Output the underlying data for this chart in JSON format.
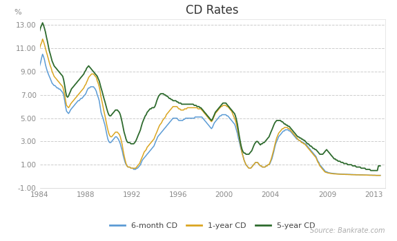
{
  "title": "CD Rates",
  "ylabel": "%",
  "source": "Source: Bankrate.com",
  "xlim": [
    1984,
    2014
  ],
  "ylim": [
    -1.0,
    13.5
  ],
  "yticks": [
    -1.0,
    1.0,
    3.0,
    5.0,
    7.0,
    9.0,
    11.0,
    13.0
  ],
  "ytick_labels": [
    "-1.00",
    "1.00",
    "3.00",
    "5.00",
    "7.00",
    "9.00",
    "11.00",
    "13.00"
  ],
  "xticks": [
    1984,
    1988,
    1992,
    1996,
    2000,
    2004,
    2009,
    2013
  ],
  "color_6m": "#5b9bd5",
  "color_1y": "#daa520",
  "color_5y": "#2d6a2d",
  "bg_color": "#ffffff",
  "grid_color": "#cccccc",
  "tick_color": "#888888",
  "title_color": "#333333",
  "legend_labels": [
    "6-month CD",
    "1-year CD",
    "5-year CD"
  ],
  "data": {
    "years": [
      1984.0,
      1984.08,
      1984.17,
      1984.25,
      1984.33,
      1984.42,
      1984.5,
      1984.58,
      1984.67,
      1984.75,
      1984.83,
      1984.92,
      1985.0,
      1985.08,
      1985.17,
      1985.25,
      1985.33,
      1985.42,
      1985.5,
      1985.58,
      1985.67,
      1985.75,
      1985.83,
      1985.92,
      1986.0,
      1986.08,
      1986.17,
      1986.25,
      1986.33,
      1986.42,
      1986.5,
      1986.58,
      1986.67,
      1986.75,
      1986.83,
      1986.92,
      1987.0,
      1987.08,
      1987.17,
      1987.25,
      1987.33,
      1987.42,
      1987.5,
      1987.58,
      1987.67,
      1987.75,
      1987.83,
      1987.92,
      1988.0,
      1988.08,
      1988.17,
      1988.25,
      1988.33,
      1988.42,
      1988.5,
      1988.58,
      1988.67,
      1988.75,
      1988.83,
      1988.92,
      1989.0,
      1989.08,
      1989.17,
      1989.25,
      1989.33,
      1989.42,
      1989.5,
      1989.58,
      1989.67,
      1989.75,
      1989.83,
      1989.92,
      1990.0,
      1990.08,
      1990.17,
      1990.25,
      1990.33,
      1990.42,
      1990.5,
      1990.58,
      1990.67,
      1990.75,
      1990.83,
      1990.92,
      1991.0,
      1991.08,
      1991.17,
      1991.25,
      1991.33,
      1991.42,
      1991.5,
      1991.58,
      1991.67,
      1991.75,
      1991.83,
      1991.92,
      1992.0,
      1992.08,
      1992.17,
      1992.25,
      1992.33,
      1992.42,
      1992.5,
      1992.58,
      1992.67,
      1992.75,
      1992.83,
      1992.92,
      1993.0,
      1993.08,
      1993.17,
      1993.25,
      1993.33,
      1993.42,
      1993.5,
      1993.58,
      1993.67,
      1993.75,
      1993.83,
      1993.92,
      1994.0,
      1994.08,
      1994.17,
      1994.25,
      1994.33,
      1994.42,
      1994.5,
      1994.58,
      1994.67,
      1994.75,
      1994.83,
      1994.92,
      1995.0,
      1995.08,
      1995.17,
      1995.25,
      1995.33,
      1995.42,
      1995.5,
      1995.58,
      1995.67,
      1995.75,
      1995.83,
      1995.92,
      1996.0,
      1996.08,
      1996.17,
      1996.25,
      1996.33,
      1996.42,
      1996.5,
      1996.58,
      1996.67,
      1996.75,
      1996.83,
      1996.92,
      1997.0,
      1997.08,
      1997.17,
      1997.25,
      1997.33,
      1997.42,
      1997.5,
      1997.58,
      1997.67,
      1997.75,
      1997.83,
      1997.92,
      1998.0,
      1998.08,
      1998.17,
      1998.25,
      1998.33,
      1998.42,
      1998.5,
      1998.58,
      1998.67,
      1998.75,
      1998.83,
      1998.92,
      1999.0,
      1999.08,
      1999.17,
      1999.25,
      1999.33,
      1999.42,
      1999.5,
      1999.58,
      1999.67,
      1999.75,
      1999.83,
      1999.92,
      2000.0,
      2000.08,
      2000.17,
      2000.25,
      2000.33,
      2000.42,
      2000.5,
      2000.58,
      2000.67,
      2000.75,
      2000.83,
      2000.92,
      2001.0,
      2001.08,
      2001.17,
      2001.25,
      2001.33,
      2001.42,
      2001.5,
      2001.58,
      2001.67,
      2001.75,
      2001.83,
      2001.92,
      2002.0,
      2002.08,
      2002.17,
      2002.25,
      2002.33,
      2002.42,
      2002.5,
      2002.58,
      2002.67,
      2002.75,
      2002.83,
      2002.92,
      2003.0,
      2003.08,
      2003.17,
      2003.25,
      2003.33,
      2003.42,
      2003.5,
      2003.58,
      2003.67,
      2003.75,
      2003.83,
      2003.92,
      2004.0,
      2004.08,
      2004.17,
      2004.25,
      2004.33,
      2004.42,
      2004.5,
      2004.58,
      2004.67,
      2004.75,
      2004.83,
      2004.92,
      2005.0,
      2005.08,
      2005.17,
      2005.25,
      2005.33,
      2005.42,
      2005.5,
      2005.58,
      2005.67,
      2005.75,
      2005.83,
      2005.92,
      2006.0,
      2006.08,
      2006.17,
      2006.25,
      2006.33,
      2006.42,
      2006.5,
      2006.58,
      2006.67,
      2006.75,
      2006.83,
      2006.92,
      2007.0,
      2007.08,
      2007.17,
      2007.25,
      2007.33,
      2007.42,
      2007.5,
      2007.58,
      2007.67,
      2007.75,
      2007.83,
      2007.92,
      2008.0,
      2008.08,
      2008.17,
      2008.25,
      2008.33,
      2008.42,
      2008.5,
      2008.58,
      2008.67,
      2008.75,
      2008.83,
      2008.92,
      2009.0,
      2009.08,
      2009.17,
      2009.25,
      2009.33,
      2009.42,
      2009.5,
      2009.58,
      2009.67,
      2009.75,
      2009.83,
      2009.92,
      2010.0,
      2010.08,
      2010.17,
      2010.25,
      2010.33,
      2010.42,
      2010.5,
      2010.58,
      2010.67,
      2010.75,
      2010.83,
      2010.92,
      2011.0,
      2011.08,
      2011.17,
      2011.25,
      2011.33,
      2011.42,
      2011.5,
      2011.58,
      2011.67,
      2011.75,
      2011.83,
      2011.92,
      2012.0,
      2012.08,
      2012.17,
      2012.25,
      2012.33,
      2012.42,
      2012.5,
      2012.58,
      2012.67,
      2012.75,
      2012.83,
      2012.92,
      2013.0,
      2013.08,
      2013.17,
      2013.25,
      2013.33,
      2013.42,
      2013.5,
      2013.58
    ],
    "rate_6m": [
      9.5,
      9.8,
      10.2,
      10.5,
      10.3,
      10.0,
      9.6,
      9.3,
      9.0,
      8.8,
      8.6,
      8.4,
      8.2,
      8.0,
      7.9,
      7.8,
      7.8,
      7.7,
      7.6,
      7.6,
      7.5,
      7.5,
      7.4,
      7.3,
      7.2,
      7.0,
      6.5,
      6.0,
      5.6,
      5.5,
      5.4,
      5.5,
      5.7,
      5.8,
      5.9,
      6.0,
      6.1,
      6.2,
      6.3,
      6.4,
      6.5,
      6.5,
      6.6,
      6.7,
      6.7,
      6.8,
      6.9,
      7.0,
      7.1,
      7.3,
      7.5,
      7.6,
      7.6,
      7.7,
      7.7,
      7.7,
      7.7,
      7.6,
      7.5,
      7.3,
      7.0,
      6.8,
      6.5,
      6.0,
      5.5,
      5.2,
      5.0,
      4.7,
      4.4,
      4.0,
      3.6,
      3.2,
      3.0,
      2.9,
      2.9,
      3.0,
      3.1,
      3.2,
      3.3,
      3.4,
      3.4,
      3.3,
      3.2,
      3.0,
      2.8,
      2.5,
      2.2,
      1.8,
      1.5,
      1.2,
      1.0,
      0.9,
      0.8,
      0.8,
      0.8,
      0.7,
      0.7,
      0.7,
      0.6,
      0.6,
      0.6,
      0.7,
      0.7,
      0.8,
      0.9,
      1.0,
      1.2,
      1.4,
      1.5,
      1.6,
      1.7,
      1.8,
      1.9,
      2.0,
      2.1,
      2.2,
      2.3,
      2.4,
      2.5,
      2.6,
      2.8,
      3.0,
      3.2,
      3.4,
      3.5,
      3.6,
      3.7,
      3.8,
      3.9,
      4.0,
      4.1,
      4.2,
      4.3,
      4.4,
      4.5,
      4.6,
      4.7,
      4.8,
      4.9,
      5.0,
      5.0,
      5.0,
      5.0,
      5.0,
      4.9,
      4.8,
      4.8,
      4.8,
      4.8,
      4.8,
      4.9,
      4.9,
      5.0,
      5.0,
      5.0,
      5.0,
      5.0,
      5.0,
      5.0,
      5.0,
      5.0,
      5.0,
      5.1,
      5.1,
      5.1,
      5.1,
      5.1,
      5.1,
      5.1,
      5.1,
      5.0,
      4.9,
      4.8,
      4.7,
      4.6,
      4.5,
      4.4,
      4.3,
      4.2,
      4.1,
      4.2,
      4.4,
      4.6,
      4.7,
      4.8,
      4.9,
      5.0,
      5.1,
      5.2,
      5.2,
      5.3,
      5.3,
      5.3,
      5.3,
      5.3,
      5.2,
      5.2,
      5.1,
      5.0,
      4.9,
      4.8,
      4.7,
      4.6,
      4.5,
      4.3,
      4.0,
      3.7,
      3.3,
      3.0,
      2.6,
      2.3,
      2.0,
      1.7,
      1.4,
      1.2,
      1.0,
      0.9,
      0.8,
      0.7,
      0.7,
      0.7,
      0.8,
      0.9,
      1.0,
      1.1,
      1.2,
      1.2,
      1.2,
      1.1,
      1.0,
      0.9,
      0.9,
      0.8,
      0.8,
      0.8,
      0.8,
      0.9,
      0.9,
      1.0,
      1.0,
      1.1,
      1.3,
      1.5,
      1.8,
      2.1,
      2.5,
      2.8,
      3.0,
      3.2,
      3.4,
      3.5,
      3.6,
      3.7,
      3.8,
      3.9,
      3.9,
      4.0,
      4.0,
      4.0,
      4.0,
      3.9,
      3.9,
      3.8,
      3.7,
      3.6,
      3.5,
      3.4,
      3.3,
      3.2,
      3.2,
      3.1,
      3.1,
      3.0,
      3.0,
      2.9,
      2.9,
      2.8,
      2.8,
      2.7,
      2.6,
      2.5,
      2.4,
      2.3,
      2.2,
      2.1,
      2.0,
      1.9,
      1.8,
      1.7,
      1.5,
      1.3,
      1.2,
      1.0,
      0.9,
      0.8,
      0.7,
      0.6,
      0.5,
      0.4,
      0.4,
      0.35,
      0.32,
      0.3,
      0.28,
      0.27,
      0.26,
      0.25,
      0.24,
      0.23,
      0.22,
      0.22,
      0.21,
      0.21,
      0.2,
      0.2,
      0.19,
      0.19,
      0.19,
      0.18,
      0.18,
      0.18,
      0.17,
      0.17,
      0.17,
      0.16,
      0.16,
      0.16,
      0.15,
      0.15,
      0.15,
      0.14,
      0.14,
      0.14,
      0.13,
      0.13,
      0.13,
      0.13,
      0.12,
      0.12,
      0.12,
      0.11,
      0.11,
      0.11,
      0.11,
      0.1,
      0.1,
      0.1,
      0.1,
      0.1,
      0.1,
      0.09,
      0.09,
      0.09,
      0.09,
      0.09,
      0.09
    ],
    "rate_1y": [
      11.0,
      11.3,
      11.5,
      11.8,
      11.6,
      11.3,
      11.0,
      10.7,
      10.4,
      10.1,
      9.8,
      9.5,
      9.3,
      9.0,
      8.8,
      8.6,
      8.5,
      8.4,
      8.3,
      8.2,
      8.1,
      8.0,
      7.9,
      7.8,
      7.7,
      7.4,
      7.0,
      6.5,
      6.1,
      6.0,
      5.9,
      6.0,
      6.2,
      6.3,
      6.4,
      6.5,
      6.6,
      6.7,
      6.8,
      6.9,
      7.0,
      7.1,
      7.2,
      7.3,
      7.4,
      7.5,
      7.6,
      7.8,
      7.9,
      8.1,
      8.3,
      8.5,
      8.6,
      8.7,
      8.8,
      8.8,
      8.8,
      8.7,
      8.6,
      8.5,
      8.2,
      8.0,
      7.7,
      7.3,
      6.8,
      6.4,
      6.0,
      5.6,
      5.2,
      4.8,
      4.4,
      4.0,
      3.7,
      3.5,
      3.4,
      3.4,
      3.5,
      3.6,
      3.7,
      3.8,
      3.8,
      3.8,
      3.7,
      3.6,
      3.4,
      3.1,
      2.7,
      2.2,
      1.8,
      1.4,
      1.1,
      0.9,
      0.8,
      0.8,
      0.8,
      0.7,
      0.7,
      0.7,
      0.7,
      0.7,
      0.7,
      0.8,
      0.9,
      1.0,
      1.1,
      1.3,
      1.5,
      1.7,
      1.9,
      2.1,
      2.2,
      2.3,
      2.5,
      2.6,
      2.7,
      2.8,
      2.9,
      3.0,
      3.1,
      3.2,
      3.4,
      3.6,
      3.8,
      4.0,
      4.2,
      4.4,
      4.5,
      4.6,
      4.8,
      4.9,
      5.0,
      5.1,
      5.3,
      5.4,
      5.5,
      5.6,
      5.7,
      5.8,
      5.9,
      6.0,
      6.0,
      6.0,
      6.0,
      6.0,
      5.9,
      5.8,
      5.8,
      5.7,
      5.7,
      5.7,
      5.7,
      5.8,
      5.8,
      5.8,
      5.9,
      5.9,
      5.9,
      5.9,
      5.9,
      5.9,
      5.9,
      5.9,
      5.9,
      5.9,
      5.9,
      5.8,
      5.8,
      5.8,
      5.8,
      5.7,
      5.6,
      5.5,
      5.4,
      5.3,
      5.2,
      5.1,
      5.0,
      4.9,
      4.8,
      4.7,
      4.8,
      5.0,
      5.2,
      5.4,
      5.5,
      5.6,
      5.7,
      5.8,
      5.9,
      6.0,
      6.0,
      6.1,
      6.1,
      6.1,
      6.1,
      6.0,
      6.0,
      5.9,
      5.8,
      5.7,
      5.6,
      5.4,
      5.2,
      5.0,
      4.8,
      4.5,
      4.1,
      3.7,
      3.3,
      2.8,
      2.4,
      2.0,
      1.7,
      1.4,
      1.2,
      1.0,
      0.9,
      0.8,
      0.7,
      0.7,
      0.7,
      0.8,
      0.9,
      1.0,
      1.1,
      1.2,
      1.2,
      1.2,
      1.1,
      1.0,
      0.9,
      0.9,
      0.8,
      0.8,
      0.8,
      0.8,
      0.9,
      0.9,
      1.0,
      1.0,
      1.2,
      1.4,
      1.7,
      2.0,
      2.3,
      2.7,
      3.0,
      3.3,
      3.5,
      3.7,
      3.8,
      3.9,
      4.0,
      4.1,
      4.1,
      4.2,
      4.2,
      4.2,
      4.2,
      4.1,
      4.1,
      4.0,
      3.9,
      3.8,
      3.7,
      3.6,
      3.5,
      3.4,
      3.3,
      3.2,
      3.1,
      3.1,
      3.0,
      2.9,
      2.9,
      2.8,
      2.8,
      2.7,
      2.6,
      2.5,
      2.4,
      2.3,
      2.2,
      2.1,
      2.0,
      1.9,
      1.8,
      1.7,
      1.6,
      1.4,
      1.2,
      1.1,
      0.9,
      0.8,
      0.7,
      0.6,
      0.5,
      0.4,
      0.35,
      0.33,
      0.3,
      0.28,
      0.27,
      0.25,
      0.24,
      0.23,
      0.22,
      0.21,
      0.21,
      0.2,
      0.2,
      0.19,
      0.19,
      0.18,
      0.18,
      0.18,
      0.17,
      0.17,
      0.17,
      0.16,
      0.16,
      0.16,
      0.15,
      0.15,
      0.15,
      0.14,
      0.14,
      0.14,
      0.14,
      0.13,
      0.13,
      0.13,
      0.13,
      0.13,
      0.12,
      0.12,
      0.12,
      0.12,
      0.11,
      0.11,
      0.11,
      0.11,
      0.1,
      0.1,
      0.1,
      0.1,
      0.1,
      0.09,
      0.09,
      0.09,
      0.09,
      0.08,
      0.08,
      0.08,
      0.08,
      0.08
    ],
    "rate_5y": [
      12.5,
      12.8,
      13.0,
      13.2,
      13.0,
      12.7,
      12.4,
      12.0,
      11.6,
      11.2,
      10.8,
      10.5,
      10.2,
      9.9,
      9.7,
      9.5,
      9.4,
      9.3,
      9.2,
      9.1,
      9.0,
      8.9,
      8.8,
      8.7,
      8.6,
      8.3,
      7.8,
      7.3,
      6.9,
      6.8,
      6.9,
      7.1,
      7.3,
      7.5,
      7.6,
      7.7,
      7.8,
      7.9,
      8.0,
      8.1,
      8.2,
      8.3,
      8.4,
      8.5,
      8.6,
      8.7,
      8.8,
      9.0,
      9.1,
      9.3,
      9.4,
      9.5,
      9.4,
      9.3,
      9.2,
      9.1,
      9.0,
      8.9,
      8.8,
      8.7,
      8.6,
      8.4,
      8.2,
      7.9,
      7.6,
      7.3,
      7.0,
      6.7,
      6.4,
      6.1,
      5.8,
      5.5,
      5.3,
      5.2,
      5.2,
      5.3,
      5.4,
      5.5,
      5.6,
      5.7,
      5.7,
      5.7,
      5.6,
      5.5,
      5.3,
      5.0,
      4.6,
      4.2,
      3.8,
      3.5,
      3.2,
      3.0,
      2.9,
      2.9,
      2.9,
      2.8,
      2.8,
      2.8,
      2.8,
      2.9,
      3.0,
      3.2,
      3.4,
      3.6,
      3.8,
      4.0,
      4.3,
      4.6,
      4.8,
      5.0,
      5.2,
      5.3,
      5.5,
      5.6,
      5.7,
      5.8,
      5.8,
      5.9,
      5.9,
      5.9,
      6.0,
      6.2,
      6.5,
      6.7,
      6.9,
      7.0,
      7.1,
      7.1,
      7.1,
      7.1,
      7.0,
      7.0,
      6.9,
      6.9,
      6.8,
      6.7,
      6.7,
      6.6,
      6.6,
      6.5,
      6.5,
      6.5,
      6.5,
      6.4,
      6.4,
      6.3,
      6.3,
      6.3,
      6.2,
      6.2,
      6.2,
      6.2,
      6.2,
      6.2,
      6.2,
      6.2,
      6.2,
      6.2,
      6.2,
      6.2,
      6.2,
      6.1,
      6.1,
      6.1,
      6.0,
      6.0,
      6.0,
      5.9,
      5.9,
      5.8,
      5.7,
      5.6,
      5.5,
      5.4,
      5.3,
      5.2,
      5.1,
      5.0,
      4.9,
      4.8,
      4.9,
      5.1,
      5.3,
      5.5,
      5.6,
      5.7,
      5.8,
      5.9,
      6.0,
      6.1,
      6.2,
      6.3,
      6.3,
      6.3,
      6.3,
      6.2,
      6.1,
      6.0,
      5.9,
      5.8,
      5.7,
      5.6,
      5.5,
      5.4,
      5.2,
      4.9,
      4.5,
      4.0,
      3.5,
      3.0,
      2.6,
      2.3,
      2.1,
      2.0,
      2.0,
      1.9,
      1.9,
      1.9,
      1.9,
      2.0,
      2.1,
      2.2,
      2.4,
      2.6,
      2.8,
      2.9,
      3.0,
      3.0,
      2.9,
      2.8,
      2.7,
      2.8,
      2.8,
      2.9,
      2.9,
      3.0,
      3.1,
      3.2,
      3.3,
      3.4,
      3.6,
      3.8,
      4.0,
      4.2,
      4.4,
      4.6,
      4.7,
      4.8,
      4.8,
      4.8,
      4.8,
      4.8,
      4.7,
      4.7,
      4.6,
      4.5,
      4.5,
      4.4,
      4.4,
      4.3,
      4.3,
      4.2,
      4.1,
      4.0,
      3.9,
      3.8,
      3.7,
      3.6,
      3.5,
      3.4,
      3.4,
      3.3,
      3.3,
      3.2,
      3.2,
      3.1,
      3.1,
      3.0,
      2.9,
      2.8,
      2.8,
      2.7,
      2.6,
      2.6,
      2.5,
      2.4,
      2.4,
      2.3,
      2.3,
      2.2,
      2.1,
      2.0,
      1.9,
      1.9,
      1.9,
      1.9,
      2.0,
      2.1,
      2.2,
      2.3,
      2.2,
      2.1,
      2.0,
      1.9,
      1.8,
      1.7,
      1.6,
      1.5,
      1.5,
      1.4,
      1.4,
      1.3,
      1.3,
      1.3,
      1.2,
      1.2,
      1.2,
      1.1,
      1.1,
      1.1,
      1.1,
      1.0,
      1.0,
      1.0,
      1.0,
      1.0,
      0.9,
      0.9,
      0.9,
      0.9,
      0.8,
      0.8,
      0.8,
      0.8,
      0.8,
      0.7,
      0.7,
      0.7,
      0.7,
      0.7,
      0.6,
      0.6,
      0.6,
      0.6,
      0.6,
      0.5,
      0.5,
      0.5,
      0.5,
      0.5,
      0.5,
      0.5,
      0.5,
      0.9,
      0.9,
      0.9
    ]
  }
}
